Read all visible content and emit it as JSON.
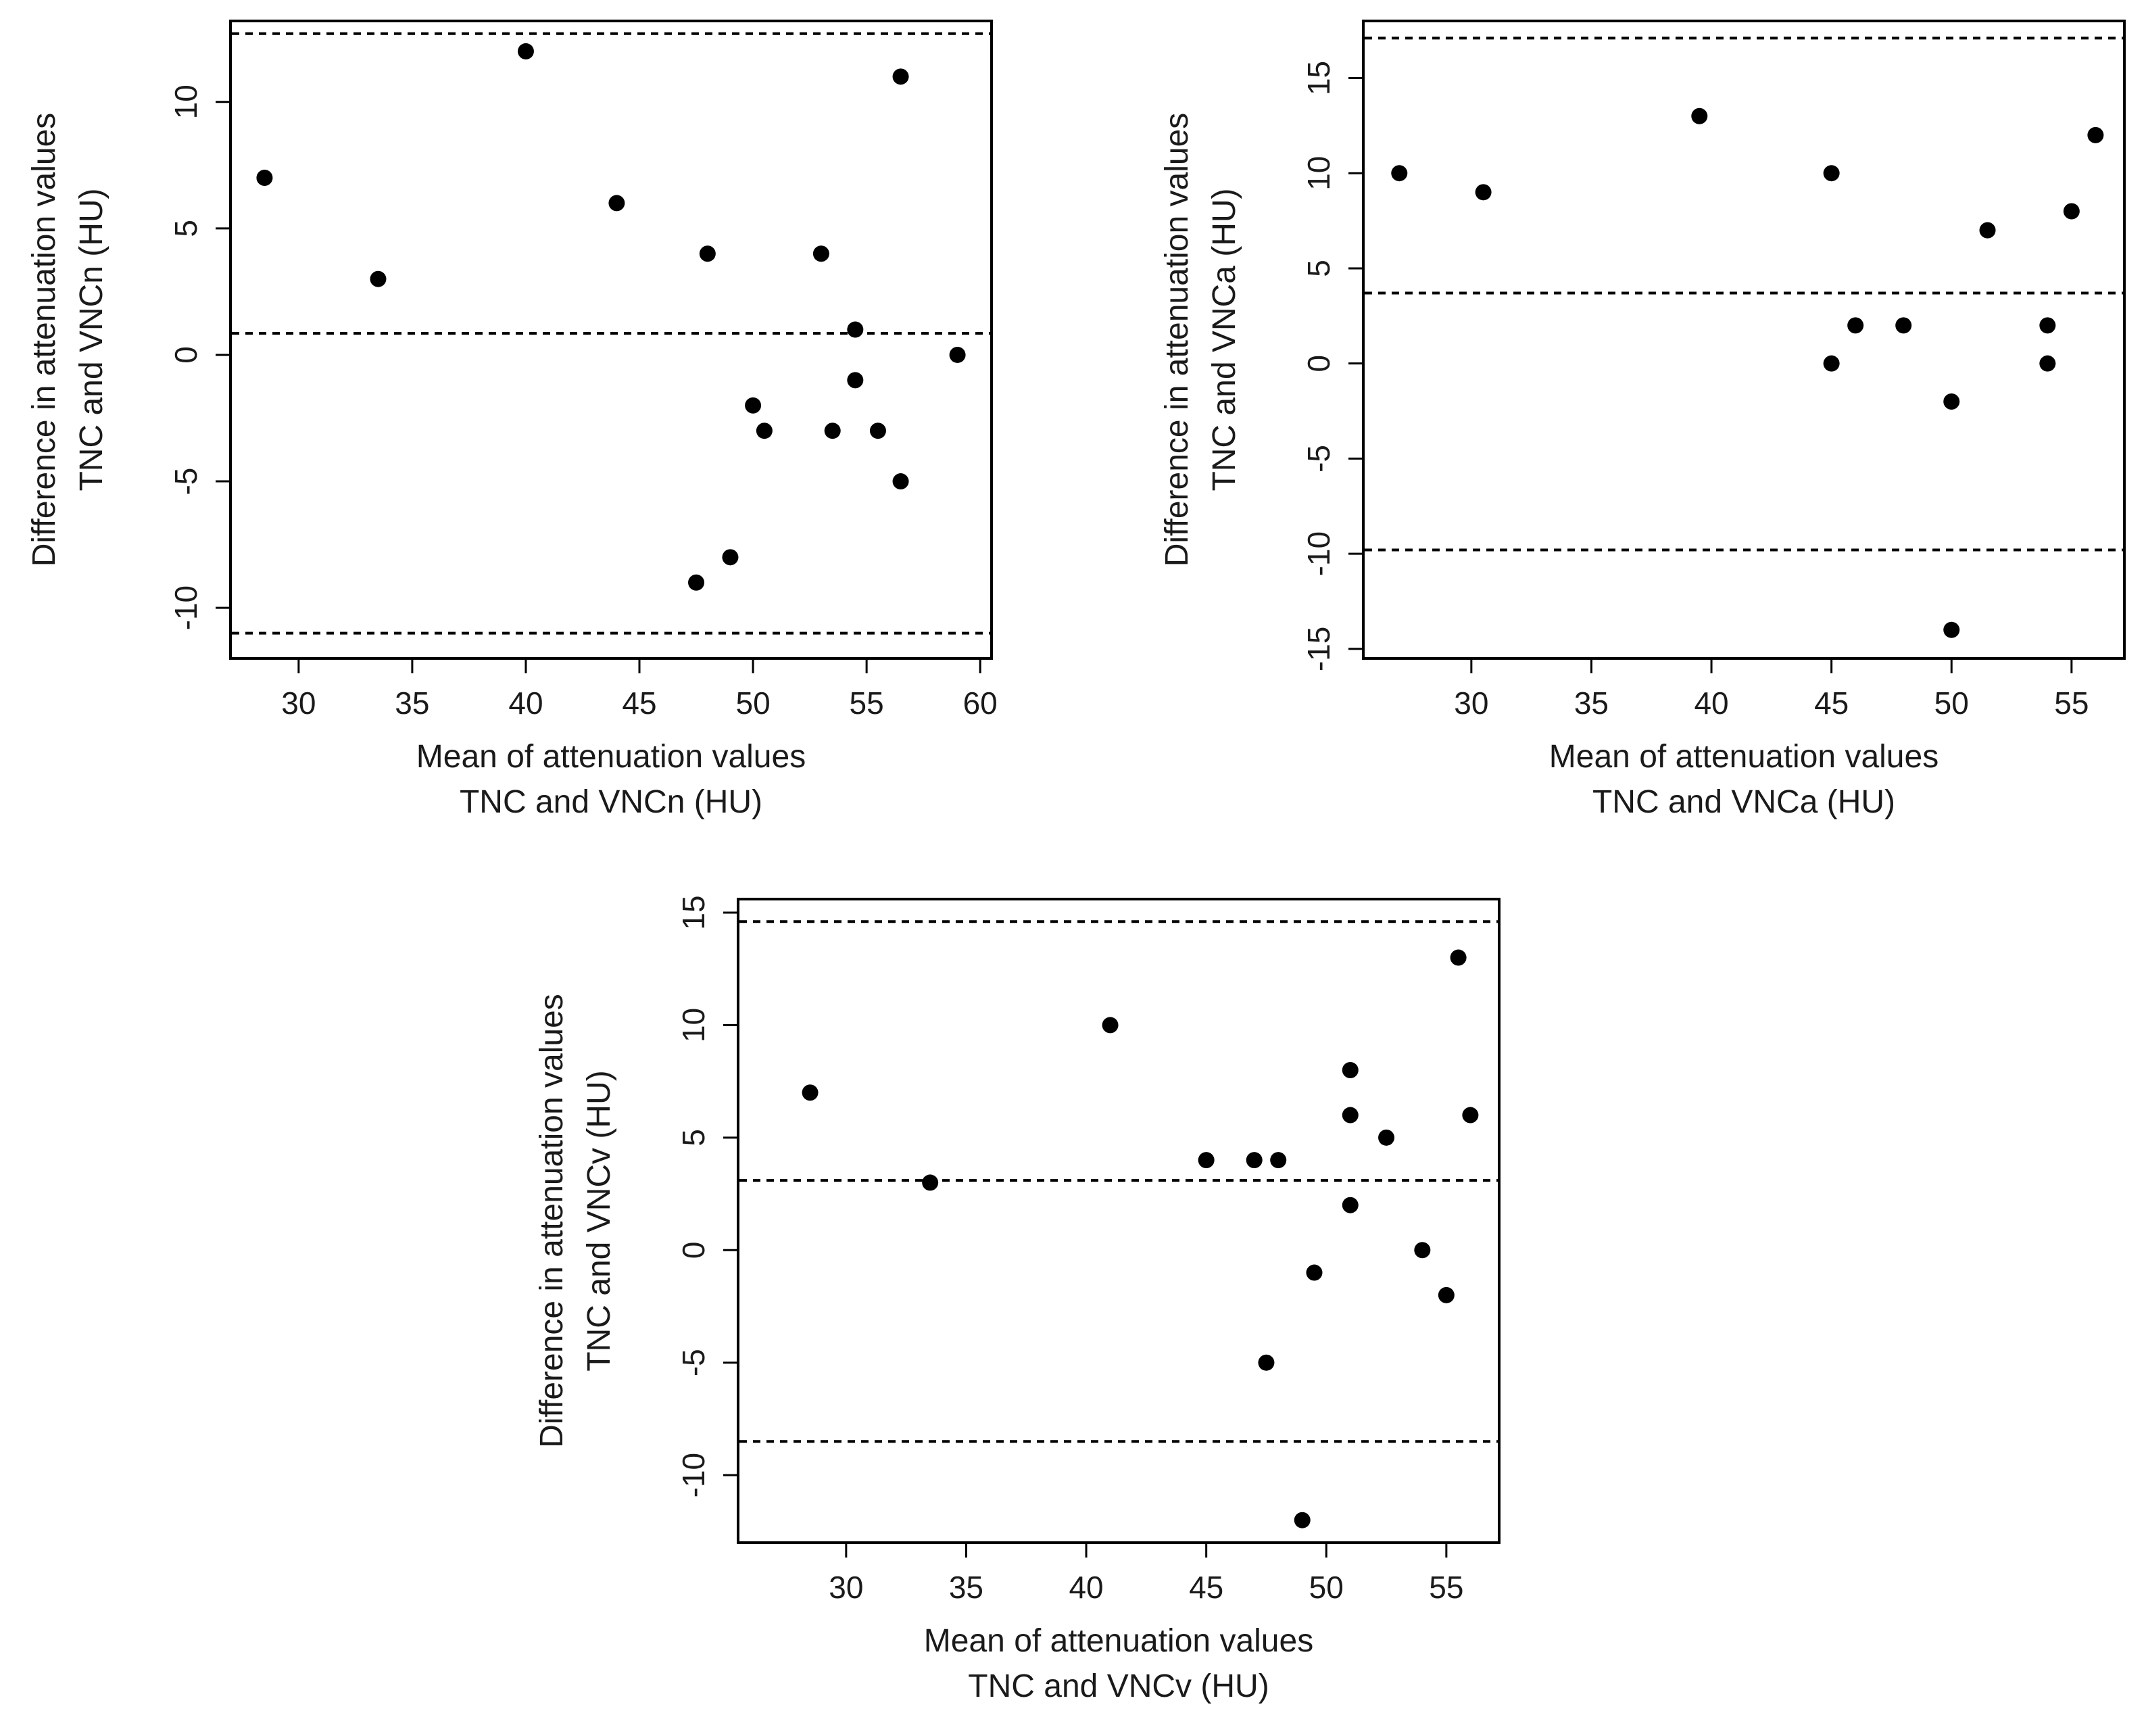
{
  "chart_data": [
    {
      "type": "scatter",
      "id": "vncn",
      "xlabel": [
        "Mean of attenuation values",
        "TNC and VNCn (HU)"
      ],
      "ylabel": [
        "Difference in attenuation values",
        "TNC and VNCn (HU)"
      ],
      "xlim": [
        27,
        60.5
      ],
      "ylim": [
        -12,
        13.2
      ],
      "xticks": [
        30,
        35,
        40,
        45,
        50,
        55,
        60
      ],
      "yticks": [
        -10,
        -5,
        0,
        5,
        10
      ],
      "hlines": [
        12.7,
        0.85,
        -11
      ],
      "x": [
        28.5,
        33.5,
        40,
        44,
        47.5,
        48,
        49,
        50,
        50.5,
        53,
        53.5,
        54.5,
        54.5,
        55.5,
        56.5,
        56.5,
        59
      ],
      "y": [
        7,
        3,
        12,
        6,
        -9,
        4,
        -8,
        -2,
        -3,
        4,
        -3,
        1,
        -1,
        -3,
        11,
        -5,
        0
      ]
    },
    {
      "type": "scatter",
      "id": "vnca",
      "xlabel": [
        "Mean of attenuation values",
        "TNC and VNCa (HU)"
      ],
      "ylabel": [
        "Difference in attenuation values",
        "TNC and VNCa (HU)"
      ],
      "xlim": [
        25.5,
        57.2
      ],
      "ylim": [
        -15.5,
        18
      ],
      "xticks": [
        30,
        35,
        40,
        45,
        50,
        55
      ],
      "yticks": [
        -15,
        -10,
        -5,
        0,
        5,
        10,
        15
      ],
      "hlines": [
        17.1,
        3.7,
        -9.8
      ],
      "x": [
        27,
        30.5,
        39.5,
        45,
        45,
        46,
        48,
        50,
        50,
        51.5,
        54,
        54,
        55,
        56
      ],
      "y": [
        10,
        9,
        13,
        10,
        0,
        2,
        2,
        -2,
        -14,
        7,
        2,
        0,
        8,
        12
      ]
    },
    {
      "type": "scatter",
      "id": "vncv",
      "xlabel": [
        "Mean of attenuation values",
        "TNC and VNCv (HU)"
      ],
      "ylabel": [
        "Difference in attenuation values",
        "TNC and VNCv (HU)"
      ],
      "xlim": [
        25.5,
        57.2
      ],
      "ylim": [
        -13,
        15.6
      ],
      "xticks": [
        30,
        35,
        40,
        45,
        50,
        55
      ],
      "yticks": [
        -10,
        -5,
        0,
        5,
        10,
        15
      ],
      "hlines": [
        14.6,
        3.1,
        -8.5
      ],
      "x": [
        28.5,
        33.5,
        41,
        45,
        47,
        47.5,
        48,
        49,
        49.5,
        51,
        51,
        51,
        52.5,
        54,
        55,
        55.5,
        56
      ],
      "y": [
        7,
        3,
        10,
        4,
        4,
        -5,
        4,
        -12,
        -1,
        8,
        6,
        2,
        5,
        0,
        -2,
        13,
        6
      ]
    }
  ]
}
